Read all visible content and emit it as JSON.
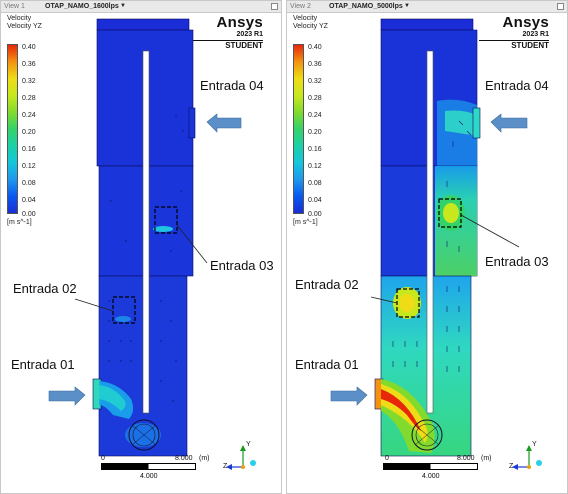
{
  "views": [
    {
      "view_label": "View 1",
      "case_name": "OTAP_NAMO_1600lps",
      "legend_title": [
        "Velocity",
        "Velocity YZ"
      ],
      "legend_ticks": [
        "0.40",
        "0.36",
        "0.32",
        "0.28",
        "0.24",
        "0.20",
        "0.16",
        "0.12",
        "0.08",
        "0.04",
        "0.00"
      ],
      "legend_units": "[m s^-1]",
      "logo": {
        "name": "Ansys",
        "version": "2023 R1",
        "edition": "STUDENT"
      },
      "labels": {
        "inlet_4": "Entrada 04",
        "inlet_3": "Entrada 03",
        "inlet_2": "Entrada 02",
        "inlet_1": "Entrada 01"
      },
      "scale": {
        "start": "0",
        "end": "8.000",
        "unit": "(m)",
        "mid": "4.000"
      },
      "axes": {
        "y": "Y",
        "z": "Z"
      }
    },
    {
      "view_label": "View 2",
      "case_name": "OTAP_NAMO_5000lps",
      "legend_title": [
        "Velocity",
        "Velocity YZ"
      ],
      "legend_ticks": [
        "0.40",
        "0.36",
        "0.32",
        "0.28",
        "0.24",
        "0.20",
        "0.16",
        "0.12",
        "0.08",
        "0.04",
        "0.00"
      ],
      "legend_units": "[m s^-1]",
      "logo": {
        "name": "Ansys",
        "version": "2023 R1",
        "edition": "STUDENT"
      },
      "labels": {
        "inlet_4": "Entrada 04",
        "inlet_3": "Entrada 03",
        "inlet_2": "Entrada 02",
        "inlet_1": "Entrada 01"
      },
      "scale": {
        "start": "0",
        "end": "8.000",
        "unit": "(m)",
        "mid": "4.000"
      },
      "axes": {
        "y": "Y",
        "z": "Z"
      }
    }
  ],
  "colors": {
    "low": "#1a2dd6",
    "mid": "#34d36a",
    "high": "#e8270a",
    "arrow": "#5b8fc7"
  }
}
